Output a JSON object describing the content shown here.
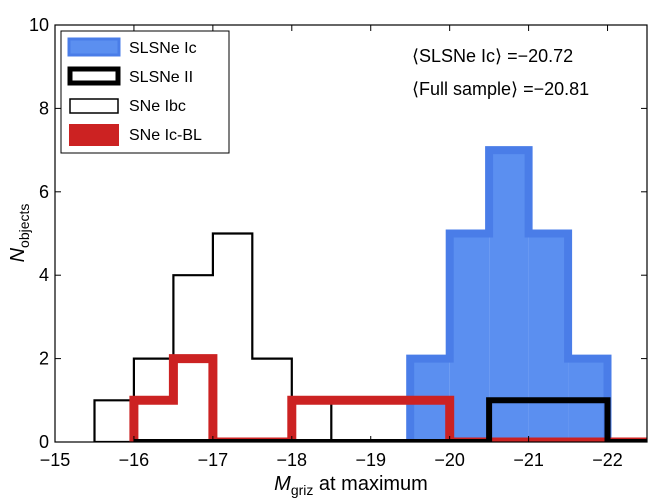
{
  "chart_data": {
    "type": "histogram",
    "x_axis": {
      "label_main": "M",
      "label_sub": "griz",
      "label_rest": " at maximum",
      "range": [
        -15,
        -22.5
      ],
      "ticks": [
        -15,
        -16,
        -17,
        -18,
        -19,
        -20,
        -21,
        -22
      ],
      "tick_labels": [
        "−15",
        "−16",
        "−17",
        "−18",
        "−19",
        "−20",
        "−21",
        "−22"
      ]
    },
    "y_axis": {
      "label_main": "N",
      "label_sub": "objects",
      "range": [
        0,
        10
      ],
      "ticks": [
        0,
        2,
        4,
        6,
        8,
        10
      ],
      "tick_labels": [
        "0",
        "2",
        "4",
        "6",
        "8",
        "10"
      ]
    },
    "series": [
      {
        "name": "SLSNe Ic",
        "style": "filled",
        "fill": "#5b8ff0",
        "edge": "#4a7de8",
        "bin_edges": [
          -19.5,
          -20.0,
          -20.5,
          -21.0,
          -21.5,
          -22.0
        ],
        "counts": [
          2,
          5,
          7,
          5,
          2
        ]
      },
      {
        "name": "SLSNe II",
        "style": "step",
        "edge": "#000000",
        "bin_edges": [
          -20.5,
          -21.0,
          -21.5,
          -22.0
        ],
        "counts": [
          1,
          1,
          1
        ]
      },
      {
        "name": "SNe Ibc",
        "style": "step",
        "edge": "#000000",
        "bin_edges": [
          -15.5,
          -16.0,
          -16.5,
          -17.0,
          -17.5,
          -18.0,
          -18.5
        ],
        "counts": [
          1,
          2,
          4,
          5,
          2,
          1
        ]
      },
      {
        "name": "SNe Ic-BL",
        "style": "step",
        "edge": "#cc2222",
        "bin_edges": [
          -16.0,
          -16.5,
          -17.0,
          -18.0,
          -18.5,
          -19.0,
          -19.5,
          -20.0
        ],
        "counts": [
          1,
          2,
          0,
          1,
          1,
          1,
          1
        ]
      }
    ],
    "legend_position": "top-left",
    "annotations": [
      "⟨SLSNe Ic⟩ =−20.72",
      "⟨Full sample⟩ =−20.81"
    ]
  }
}
